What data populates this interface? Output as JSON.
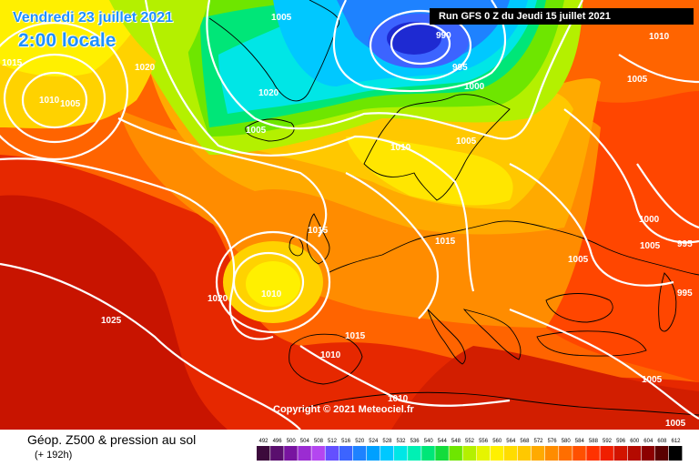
{
  "header": {
    "date": "Vendredi 23 juillet 2021",
    "time": "2:00 locale",
    "run": "Run GFS 0 Z du Jeudi 15 juillet 2021"
  },
  "copyright": "Copyright © 2021 Meteociel.fr",
  "footer": {
    "title": "Géop. Z500 & pression au sol",
    "subtitle": "(+ 192h)"
  },
  "isobar_labels": [
    "1005",
    "1015",
    "1020",
    "1010",
    "1005",
    "1020",
    "1005",
    "990",
    "995",
    "1000",
    "1010",
    "1005",
    "1010",
    "1005",
    "1015",
    "1000",
    "1005",
    "995",
    "995",
    "1005",
    "1015",
    "1010",
    "1020",
    "1025",
    "1015",
    "1010",
    "1010",
    "1005",
    "1005"
  ],
  "legend": {
    "ticks": [
      "492",
      "496",
      "500",
      "504",
      "508",
      "512",
      "516",
      "520",
      "524",
      "528",
      "532",
      "536",
      "540",
      "544",
      "548",
      "552",
      "556",
      "560",
      "564",
      "568",
      "572",
      "576",
      "580",
      "584",
      "588",
      "592",
      "596",
      "600",
      "604",
      "608",
      "612"
    ],
    "colors": [
      "#3c0a3c",
      "#5a0f6e",
      "#7814a0",
      "#9b2cd2",
      "#b446f0",
      "#6450ff",
      "#3c64ff",
      "#1e82ff",
      "#00a0ff",
      "#00c8ff",
      "#00e6e6",
      "#00f0b4",
      "#00e678",
      "#14dc3c",
      "#6ee600",
      "#b4f000",
      "#e6f500",
      "#fff000",
      "#ffdc00",
      "#ffc800",
      "#ffaa00",
      "#ff8c00",
      "#ff6e00",
      "#ff5000",
      "#ff3200",
      "#f01e00",
      "#d21400",
      "#b40a00",
      "#8c0000",
      "#5a0000",
      "#000000"
    ]
  },
  "colors": {
    "title": "#1e90ff",
    "isobar": "#ffffff",
    "coast": "#000000"
  }
}
